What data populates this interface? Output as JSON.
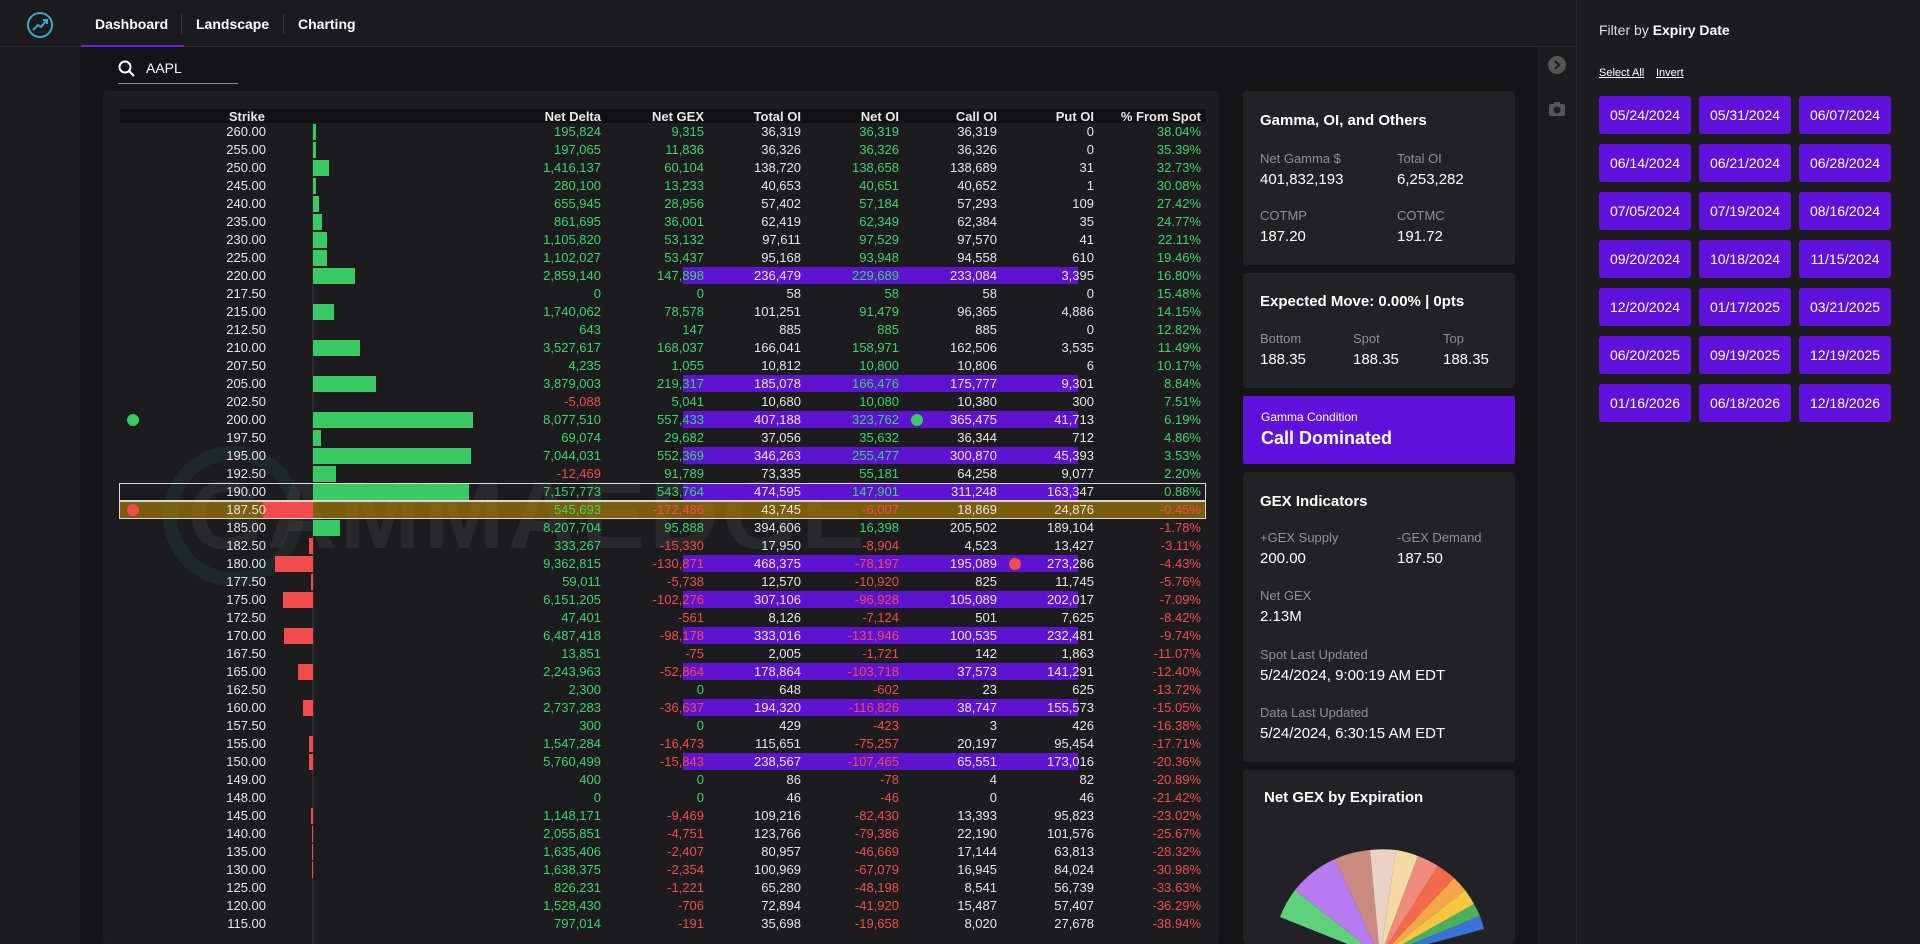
{
  "nav": {
    "tabs": [
      "Dashboard",
      "Landscape",
      "Charting"
    ],
    "active": "Dashboard"
  },
  "search": {
    "value": "AAPL"
  },
  "table": {
    "headers": [
      "Strike",
      "Net Delta",
      "Net GEX",
      "Total OI",
      "Net OI",
      "Call OI",
      "Put OI",
      "% From Spot"
    ],
    "rows": [
      [
        "260.00",
        "195,824",
        "9,315",
        "36,319",
        "36,319",
        "36,319",
        "0",
        "38.04%"
      ],
      [
        "255.00",
        "197,065",
        "11,836",
        "36,326",
        "36,326",
        "36,326",
        "0",
        "35.39%"
      ],
      [
        "250.00",
        "1,416,137",
        "60,104",
        "138,720",
        "138,658",
        "138,689",
        "31",
        "32.73%"
      ],
      [
        "245.00",
        "280,100",
        "13,233",
        "40,653",
        "40,651",
        "40,652",
        "1",
        "30.08%"
      ],
      [
        "240.00",
        "655,945",
        "28,956",
        "57,402",
        "57,184",
        "57,293",
        "109",
        "27.42%"
      ],
      [
        "235.00",
        "861,695",
        "36,001",
        "62,419",
        "62,349",
        "62,384",
        "35",
        "24.77%"
      ],
      [
        "230.00",
        "1,105,820",
        "53,132",
        "97,611",
        "97,529",
        "97,570",
        "41",
        "22.11%"
      ],
      [
        "225.00",
        "1,102,027",
        "53,437",
        "95,168",
        "93,948",
        "94,558",
        "610",
        "19.46%"
      ],
      [
        "220.00",
        "2,859,140",
        "147,898",
        "236,479",
        "229,689",
        "233,084",
        "3,395",
        "16.80%"
      ],
      [
        "217.50",
        "0",
        "0",
        "58",
        "58",
        "58",
        "0",
        "15.48%"
      ],
      [
        "215.00",
        "1,740,062",
        "78,578",
        "101,251",
        "91,479",
        "96,365",
        "4,886",
        "14.15%"
      ],
      [
        "212.50",
        "643",
        "147",
        "885",
        "885",
        "885",
        "0",
        "12.82%"
      ],
      [
        "210.00",
        "3,527,617",
        "168,037",
        "166,041",
        "158,971",
        "162,506",
        "3,535",
        "11.49%"
      ],
      [
        "207.50",
        "4,235",
        "1,055",
        "10,812",
        "10,800",
        "10,806",
        "6",
        "10.17%"
      ],
      [
        "205.00",
        "3,879,003",
        "219,317",
        "185,078",
        "166,476",
        "175,777",
        "9,301",
        "8.84%"
      ],
      [
        "202.50",
        "-5,088",
        "5,041",
        "10,680",
        "10,080",
        "10,380",
        "300",
        "7.51%"
      ],
      [
        "200.00",
        "8,077,510",
        "557,433",
        "407,188",
        "323,762",
        "365,475",
        "41,713",
        "6.19%"
      ],
      [
        "197.50",
        "69,074",
        "29,682",
        "37,056",
        "35,632",
        "36,344",
        "712",
        "4.86%"
      ],
      [
        "195.00",
        "7,044,031",
        "552,369",
        "346,263",
        "255,477",
        "300,870",
        "45,393",
        "3.53%"
      ],
      [
        "192.50",
        "-12,469",
        "91,789",
        "73,335",
        "55,181",
        "64,258",
        "9,077",
        "2.20%"
      ],
      [
        "190.00",
        "7,157,773",
        "543,764",
        "474,595",
        "147,901",
        "311,248",
        "163,347",
        "0.88%"
      ],
      [
        "187.50",
        "545,693",
        "-172,486",
        "43,745",
        "-6,007",
        "18,869",
        "24,876",
        "-0.45%"
      ],
      [
        "185.00",
        "8,207,704",
        "95,888",
        "394,606",
        "16,398",
        "205,502",
        "189,104",
        "-1.78%"
      ],
      [
        "182.50",
        "333,267",
        "-15,330",
        "17,950",
        "-8,904",
        "4,523",
        "13,427",
        "-3.11%"
      ],
      [
        "180.00",
        "9,362,815",
        "-130,871",
        "468,375",
        "-78,197",
        "195,089",
        "273,286",
        "-4.43%"
      ],
      [
        "177.50",
        "59,011",
        "-5,738",
        "12,570",
        "-10,920",
        "825",
        "11,745",
        "-5.76%"
      ],
      [
        "175.00",
        "6,151,205",
        "-102,276",
        "307,106",
        "-96,928",
        "105,089",
        "202,017",
        "-7.09%"
      ],
      [
        "172.50",
        "47,401",
        "-561",
        "8,126",
        "-7,124",
        "501",
        "7,625",
        "-8.42%"
      ],
      [
        "170.00",
        "6,487,418",
        "-98,178",
        "333,016",
        "-131,946",
        "100,535",
        "232,481",
        "-9.74%"
      ],
      [
        "167.50",
        "13,851",
        "-75",
        "2,005",
        "-1,721",
        "142",
        "1,863",
        "-11.07%"
      ],
      [
        "165.00",
        "2,243,963",
        "-52,864",
        "178,864",
        "-103,718",
        "37,573",
        "141,291",
        "-12.40%"
      ],
      [
        "162.50",
        "2,300",
        "0",
        "648",
        "-602",
        "23",
        "625",
        "-13.72%"
      ],
      [
        "160.00",
        "2,737,283",
        "-36,637",
        "194,320",
        "-116,826",
        "38,747",
        "155,573",
        "-15.05%"
      ],
      [
        "157.50",
        "300",
        "0",
        "429",
        "-423",
        "3",
        "426",
        "-16.38%"
      ],
      [
        "155.00",
        "1,547,284",
        "-16,473",
        "115,651",
        "-75,257",
        "20,197",
        "95,454",
        "-17.71%"
      ],
      [
        "150.00",
        "5,760,499",
        "-15,843",
        "238,567",
        "-107,465",
        "65,551",
        "173,016",
        "-20.36%"
      ],
      [
        "149.00",
        "400",
        "0",
        "86",
        "-78",
        "4",
        "82",
        "-20.89%"
      ],
      [
        "148.00",
        "0",
        "0",
        "46",
        "-46",
        "0",
        "46",
        "-21.42%"
      ],
      [
        "145.00",
        "1,148,171",
        "-9,469",
        "109,216",
        "-82,430",
        "13,393",
        "95,823",
        "-23.02%"
      ],
      [
        "140.00",
        "2,055,851",
        "-4,751",
        "123,766",
        "-79,386",
        "22,190",
        "101,576",
        "-25.67%"
      ],
      [
        "135.00",
        "1,635,406",
        "-2,407",
        "80,957",
        "-46,669",
        "17,144",
        "63,813",
        "-28.32%"
      ],
      [
        "130.00",
        "1,638,375",
        "-2,354",
        "100,969",
        "-67,079",
        "16,945",
        "84,024",
        "-30.98%"
      ],
      [
        "125.00",
        "826,231",
        "-1,221",
        "65,280",
        "-48,198",
        "8,541",
        "56,739",
        "-33.63%"
      ],
      [
        "120.00",
        "1,528,430",
        "-706",
        "72,894",
        "-41,920",
        "15,487",
        "57,407",
        "-36.29%"
      ],
      [
        "115.00",
        "797,014",
        "-191",
        "35,698",
        "-19,658",
        "8,020",
        "27,678",
        "-38.94%"
      ]
    ],
    "highlight_rows": [
      8,
      14,
      16,
      18,
      20,
      24,
      26,
      28,
      30,
      32,
      35
    ],
    "gex_bars": [
      3,
      3,
      16,
      3,
      6,
      9,
      14,
      14,
      42,
      0,
      21,
      0,
      47,
      0,
      63,
      0,
      160,
      8,
      158,
      23,
      156,
      -50,
      27,
      -4,
      -38,
      -2,
      -30,
      0,
      -29,
      0,
      -15,
      0,
      -10,
      0,
      -4,
      -4,
      0,
      0,
      -2,
      -1,
      -1,
      -1,
      0,
      0,
      0
    ]
  },
  "watermark": "GAMMAEDGE",
  "gamma_card": {
    "title": "Gamma, OI, and Others",
    "net_gamma_label": "Net Gamma $",
    "net_gamma": "401,832,193",
    "total_oi_label": "Total OI",
    "total_oi": "6,253,282",
    "cotmp_label": "COTMP",
    "cotmp": "187.20",
    "cotmc_label": "COTMC",
    "cotmc": "191.72"
  },
  "expected_move": {
    "title": "Expected Move: 0.00% | 0pts",
    "bottom_label": "Bottom",
    "bottom": "188.35",
    "spot_label": "Spot",
    "spot": "188.35",
    "top_label": "Top",
    "top": "188.35"
  },
  "gamma_condition": {
    "label": "Gamma Condition",
    "value": "Call Dominated"
  },
  "gex_indicators": {
    "title": "GEX Indicators",
    "supply_label": "+GEX Supply",
    "supply": "200.00",
    "demand_label": "-GEX Demand",
    "demand": "187.50",
    "net_label": "Net GEX",
    "net": "2.13M",
    "spot_updated_label": "Spot Last Updated",
    "spot_updated": "5/24/2024, 9:00:19 AM EDT",
    "data_updated_label": "Data Last Updated",
    "data_updated": "5/24/2024, 6:30:15 AM EDT"
  },
  "net_gex_expiration": {
    "title": "Net GEX by Expiration"
  },
  "filter": {
    "title_prefix": "Filter by ",
    "title_bold": "Expiry Date",
    "select_all": "Select All",
    "invert": "Invert",
    "dates": [
      "05/24/2024",
      "05/31/2024",
      "06/07/2024",
      "06/14/2024",
      "06/21/2024",
      "06/28/2024",
      "07/05/2024",
      "07/19/2024",
      "08/16/2024",
      "09/20/2024",
      "10/18/2024",
      "11/15/2024",
      "12/20/2024",
      "01/17/2025",
      "03/21/2025",
      "06/20/2025",
      "09/19/2025",
      "12/19/2025",
      "01/16/2026",
      "06/18/2026",
      "12/18/2026"
    ]
  },
  "colors": {
    "accent": "#6011dc",
    "positive": "#39d46a",
    "negative": "#f24b4b",
    "spot": "#c89100"
  }
}
